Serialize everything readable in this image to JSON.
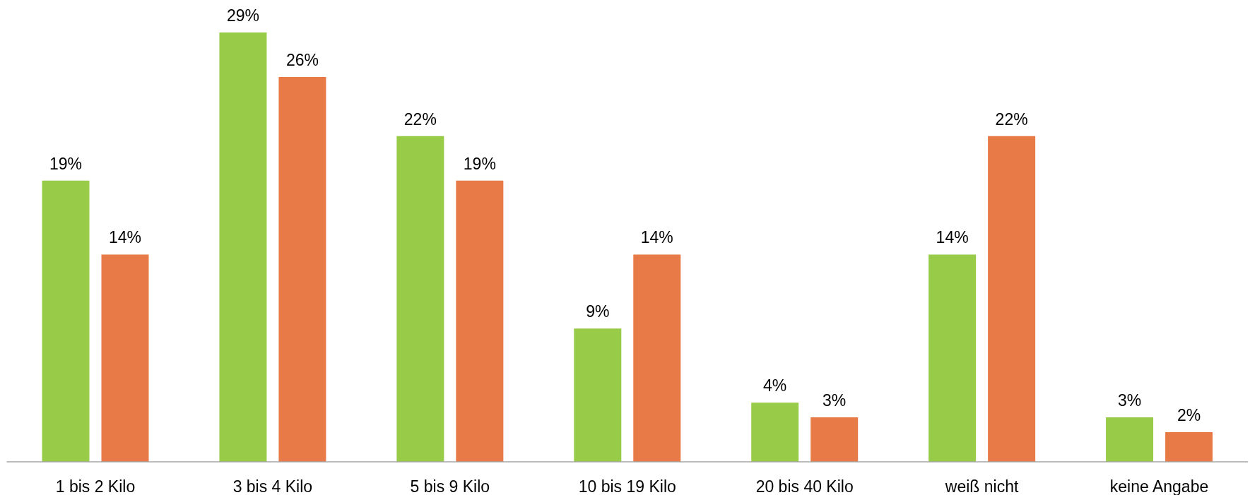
{
  "chart_data": {
    "type": "bar",
    "categories": [
      "1 bis 2 Kilo",
      "3 bis 4 Kilo",
      "5 bis 9 Kilo",
      "10 bis 19 Kilo",
      "20 bis 40 Kilo",
      "weiß nicht",
      "keine Angabe"
    ],
    "series": [
      {
        "color": "#98cb47",
        "values": [
          19,
          29,
          22,
          9,
          4,
          14,
          3
        ],
        "value_labels": [
          "19%",
          "29%",
          "22%",
          "9%",
          "4%",
          "14%",
          "3%"
        ]
      },
      {
        "color": "#e77a46",
        "values": [
          14,
          26,
          19,
          14,
          3,
          22,
          2
        ],
        "value_labels": [
          "14%",
          "26%",
          "19%",
          "14%",
          "3%",
          "22%",
          "2%"
        ]
      }
    ],
    "grid": false,
    "legend": false
  }
}
